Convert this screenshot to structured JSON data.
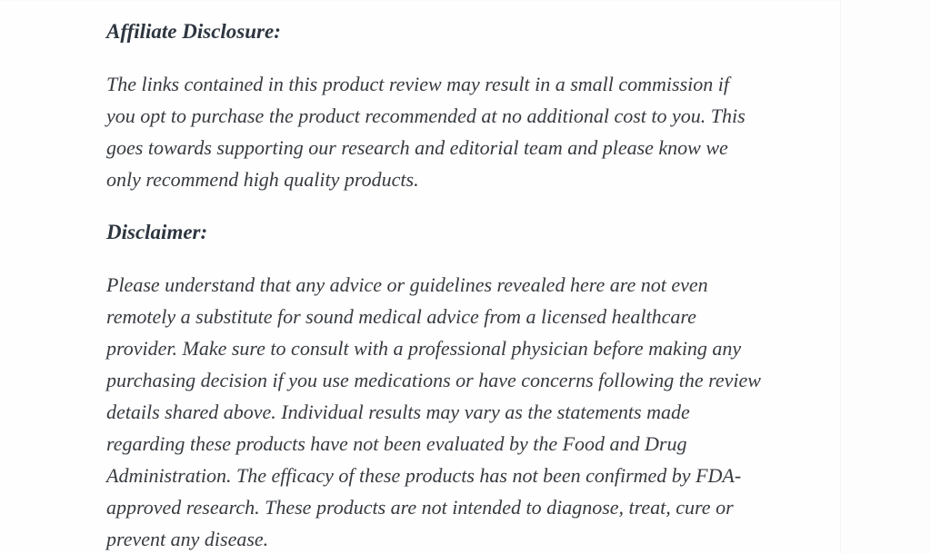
{
  "page": {
    "background_color": "#fdfdfd",
    "text_color": "#373b40",
    "heading_color": "#2e3640",
    "hairline_color": "#f6f6f6"
  },
  "content": {
    "sections": [
      {
        "heading": "Affiliate Disclosure:",
        "body": "The links contained in this product review may result in a small commission if\nyou opt to purchase the product recommended at no additional cost to you. This\ngoes towards supporting our research and editorial team and please know we\nonly recommend high quality products."
      },
      {
        "heading": "Disclaimer:",
        "body": "Please understand that any advice or guidelines revealed here are not even\nremotely a substitute for sound medical advice from a licensed healthcare\nprovider. Make sure to consult with a professional physician before making any\npurchasing decision if you use medications or have concerns following the review\ndetails shared above. Individual results may vary as the statements made\nregarding these products have not been evaluated by the Food and Drug\nAdministration. The efficacy of these products has not been confirmed by FDA-\napproved research. These products are not intended to diagnose, treat, cure or\nprevent any disease."
      }
    ]
  }
}
